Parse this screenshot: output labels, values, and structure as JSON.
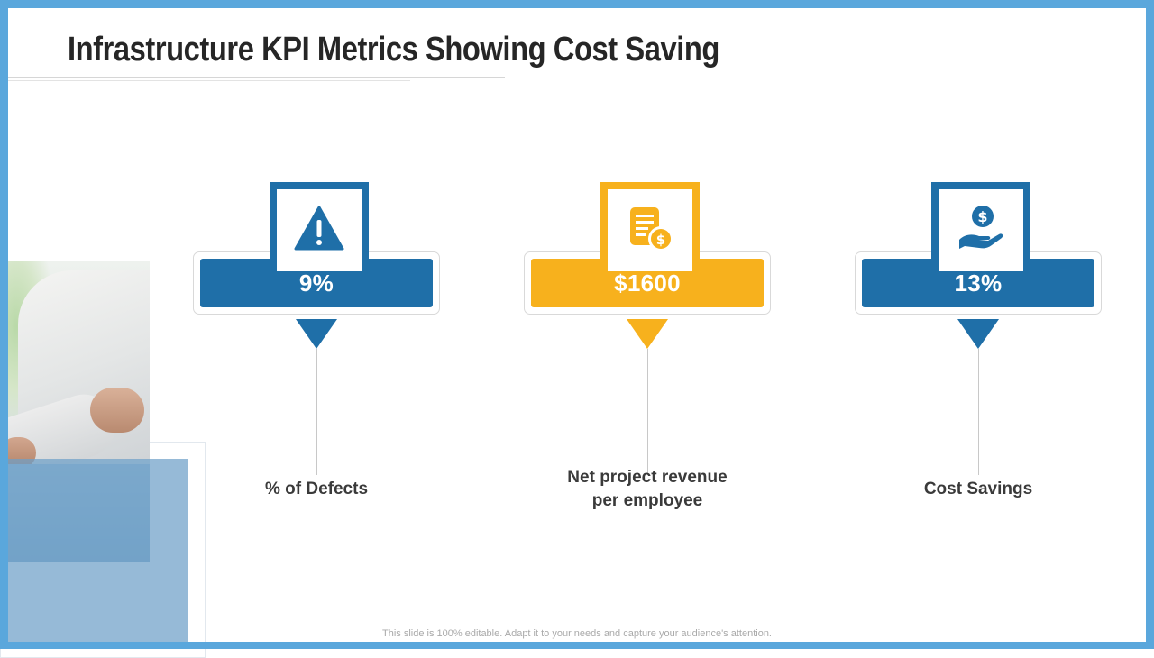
{
  "slide": {
    "title": "Infrastructure KPI Metrics Showing Cost Saving",
    "footer": "This slide is 100% editable. Adapt it to your needs and capture your audience's attention."
  },
  "kpis": [
    {
      "value": "9%",
      "label": "% of Defects",
      "icon": "warning-icon",
      "color": "#1f6fa8"
    },
    {
      "value": "$1600",
      "label_line1": "Net project revenue",
      "label_line2": "per employee",
      "icon": "invoice-dollar-icon",
      "color": "#f7b11d"
    },
    {
      "value": "13%",
      "label": "Cost Savings",
      "icon": "hand-dollar-icon",
      "color": "#1f6fa8"
    }
  ],
  "colors": {
    "frame": "#5aa7dc",
    "primary_blue": "#1f6fa8",
    "accent_gold": "#f7b11d"
  }
}
